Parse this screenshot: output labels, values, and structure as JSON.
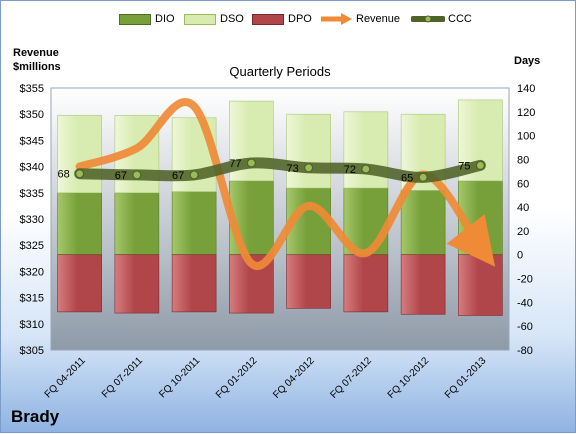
{
  "legend": [
    {
      "label": "DIO",
      "kind": "bar",
      "color": "#77a03a"
    },
    {
      "label": "DSO",
      "kind": "bar",
      "color": "#d8ebb0"
    },
    {
      "label": "DPO",
      "kind": "bar",
      "color": "#b0454a"
    },
    {
      "label": "Revenue",
      "kind": "line",
      "color": "#ef8a36"
    },
    {
      "label": "CCC",
      "kind": "line",
      "color": "#4f6228"
    }
  ],
  "chart_data": {
    "type": "bar",
    "title": "Quarterly Periods",
    "ylabel_left_line1": "Revenue",
    "ylabel_left_line2": "$millions",
    "ylabel_right": "Days",
    "categories": [
      "FQ 04-2011",
      "FQ 07-2011",
      "FQ 10-2011",
      "FQ 01-2012",
      "FQ 04-2012",
      "FQ 07-2012",
      "FQ 10-2012",
      "FQ 01-2013"
    ],
    "series": [
      {
        "name": "DIO",
        "axis": "right",
        "values": [
          52,
          52,
          53,
          62,
          56,
          56,
          54,
          62
        ]
      },
      {
        "name": "DSO",
        "axis": "right",
        "values": [
          65,
          65,
          62,
          67,
          62,
          64,
          64,
          68
        ]
      },
      {
        "name": "DPO",
        "axis": "right",
        "values": [
          -48,
          -49,
          -48,
          -49,
          -45,
          -48,
          -50,
          -51
        ]
      },
      {
        "name": "Revenue",
        "axis": "left",
        "values": [
          340.0,
          343.5,
          351.5,
          321.5,
          332.5,
          323.5,
          338.5,
          324.5
        ]
      },
      {
        "name": "CCC",
        "axis": "right",
        "values": [
          68,
          67,
          67,
          77,
          73,
          72,
          65,
          75
        ]
      }
    ],
    "ccc_labels": [
      "68",
      "67",
      "67",
      "77",
      "73",
      "72",
      "65",
      "75"
    ],
    "yleft": {
      "min": 305,
      "max": 355,
      "step": 5,
      "ticks": [
        "$305",
        "$310",
        "$315",
        "$320",
        "$325",
        "$330",
        "$335",
        "$340",
        "$345",
        "$350",
        "$355"
      ]
    },
    "yright": {
      "min": -80,
      "max": 140,
      "step": 20,
      "ticks": [
        "-80",
        "-60",
        "-40",
        "-20",
        "0",
        "20",
        "40",
        "60",
        "80",
        "100",
        "120",
        "140"
      ]
    },
    "grid": false,
    "legend_position": "top"
  },
  "company": "Brady",
  "colors": {
    "dio": "#77a03a",
    "dio_light": "#a6c86a",
    "dso": "#d8ebb0",
    "dso_light": "#eef7d8",
    "dpo": "#b0454a",
    "dpo_light": "#d77c7e",
    "revenue": "#ef8a36",
    "ccc": "#4f6228",
    "ccc_marker": "#9bbb59",
    "plot_top": "#ffffff",
    "plot_bottom": "#8e9aa8"
  }
}
